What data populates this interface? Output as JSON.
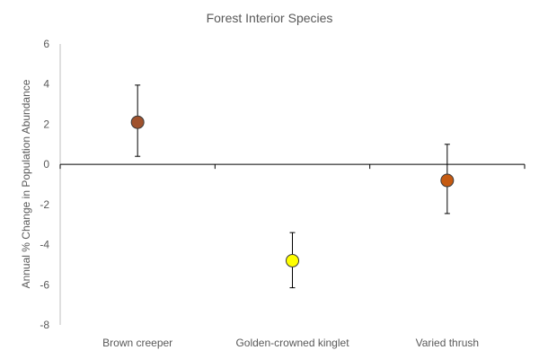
{
  "chart_data": {
    "type": "scatter",
    "title": "Forest Interior Species",
    "xlabel": "",
    "ylabel": "Annual % Change in Population Abundance",
    "ylim": [
      -8,
      6
    ],
    "yticks": [
      6,
      4,
      2,
      0,
      -2,
      -4,
      -6,
      -8
    ],
    "categories": [
      "Brown creeper",
      "Golden-crowned kinglet",
      "Varied thrush"
    ],
    "points": [
      {
        "category": "Brown creeper",
        "value": 2.1,
        "error_low": 0.4,
        "error_high": 3.95,
        "color": "#A0522D"
      },
      {
        "category": "Golden-crowned kinglet",
        "value": -4.8,
        "error_low": -6.15,
        "error_high": -3.4,
        "color": "#FFFF00"
      },
      {
        "category": "Varied thrush",
        "value": -0.8,
        "error_low": -2.45,
        "error_high": 1.0,
        "color": "#C55A11"
      }
    ],
    "grid": false,
    "legend": "none"
  }
}
